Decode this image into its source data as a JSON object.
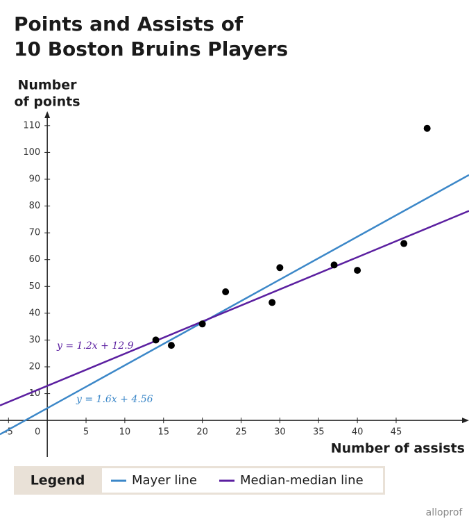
{
  "chart_data": {
    "type": "scatter",
    "title": [
      "Points and Assists of",
      "10 Boston Bruins Players"
    ],
    "y_label": [
      "Number",
      "of points"
    ],
    "x_label": "Number of assists",
    "x": [
      14,
      16,
      20,
      23,
      29,
      30,
      37,
      40,
      46,
      49
    ],
    "values": [
      30,
      28,
      36,
      48,
      44,
      57,
      58,
      56,
      66,
      109
    ],
    "color": "#000000",
    "lines": [
      {
        "name": "Mayer line",
        "color": "#3b87c8",
        "equation": "y = 1.6x + 4.56",
        "slope": 1.6,
        "intercept": 4.56
      },
      {
        "name": "Median-median line",
        "color": "#5b1fa0",
        "equation": "y = 1.2x + 12.9",
        "slope": 1.2,
        "intercept": 12.9
      }
    ],
    "legend_title": "Legend",
    "xlim": [
      -6.1,
      54.4
    ],
    "ylim": [
      -13.7,
      115.4
    ],
    "xticks": [
      -5,
      0,
      5,
      10,
      15,
      20,
      25,
      30,
      35,
      40,
      45
    ],
    "yticks": [
      10,
      20,
      30,
      40,
      50,
      60,
      70,
      80,
      90,
      100,
      110
    ],
    "watermark": "alloprof"
  }
}
